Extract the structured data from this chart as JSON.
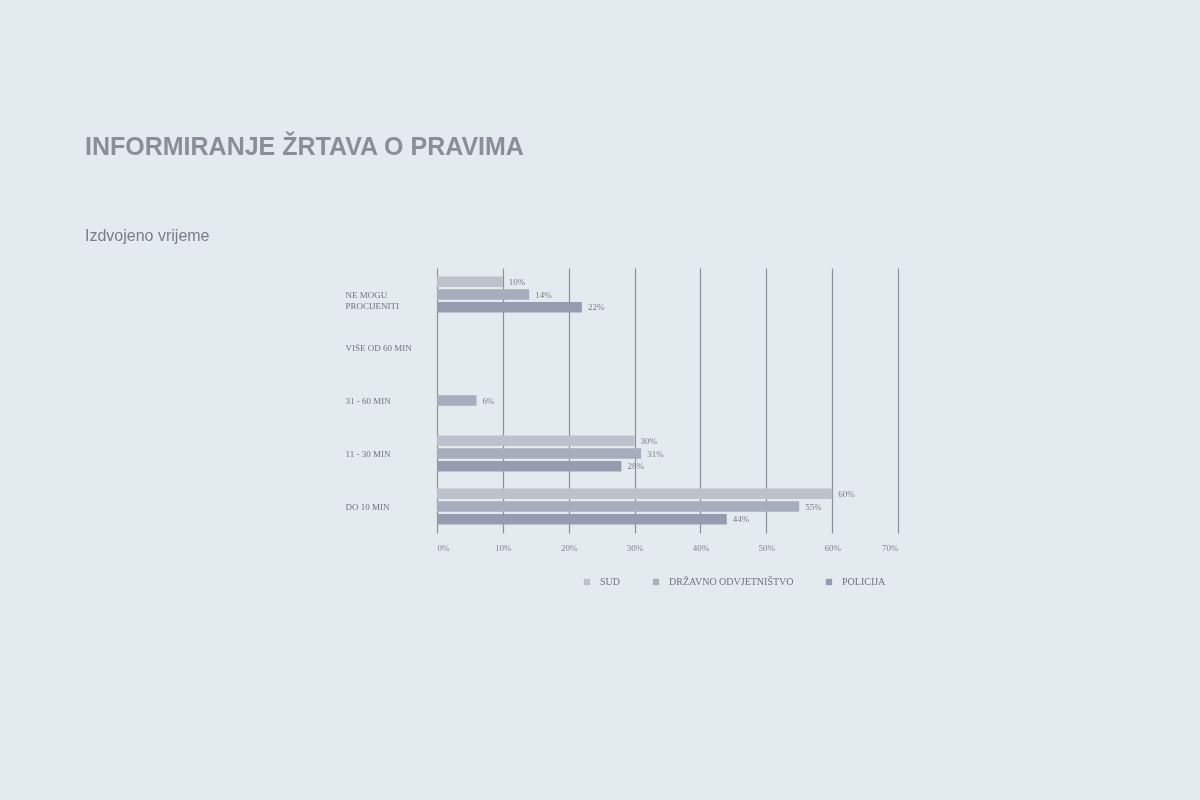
{
  "chart_data": {
    "type": "bar",
    "orientation": "horizontal",
    "title": "INFORMIRANJE ŽRTAVA O PRAVIMA",
    "subtitle": "Izdvojeno vrijeme",
    "categories": [
      "NE MOGU PROCIJENITI",
      "VIŠE OD 60 MIN",
      "31 - 60 MIN",
      "11 - 30 MIN",
      "DO 10 MIN"
    ],
    "series": [
      {
        "name": "SUD",
        "color": "#bcc1cc",
        "values": [
          10,
          null,
          null,
          30,
          60
        ],
        "value_labels": [
          "10%",
          null,
          null,
          "30%",
          "60%"
        ]
      },
      {
        "name": "DRŽAVNO ODVJETNIŠTVO",
        "color": "#a6adbd",
        "values": [
          14,
          null,
          6,
          31,
          55
        ],
        "value_labels": [
          "14%",
          null,
          "6%",
          "31%",
          "55%"
        ]
      },
      {
        "name": "POLICIJA",
        "color": "#959cb0",
        "values": [
          22,
          null,
          null,
          28,
          44
        ],
        "value_labels": [
          "22%",
          null,
          null,
          "28%",
          "44%"
        ]
      }
    ],
    "xlim": [
      0,
      70
    ],
    "xticks": [
      {
        "value": 0,
        "label": "0%"
      },
      {
        "value": 10,
        "label": "10%"
      },
      {
        "value": 20,
        "label": "20%"
      },
      {
        "value": 30,
        "label": "30%"
      },
      {
        "value": 40,
        "label": "40%"
      },
      {
        "value": 50,
        "label": "50%"
      },
      {
        "value": 60,
        "label": "60%"
      },
      {
        "value": 70,
        "label": "70%"
      }
    ],
    "grid": "x",
    "legend": "bottom"
  }
}
